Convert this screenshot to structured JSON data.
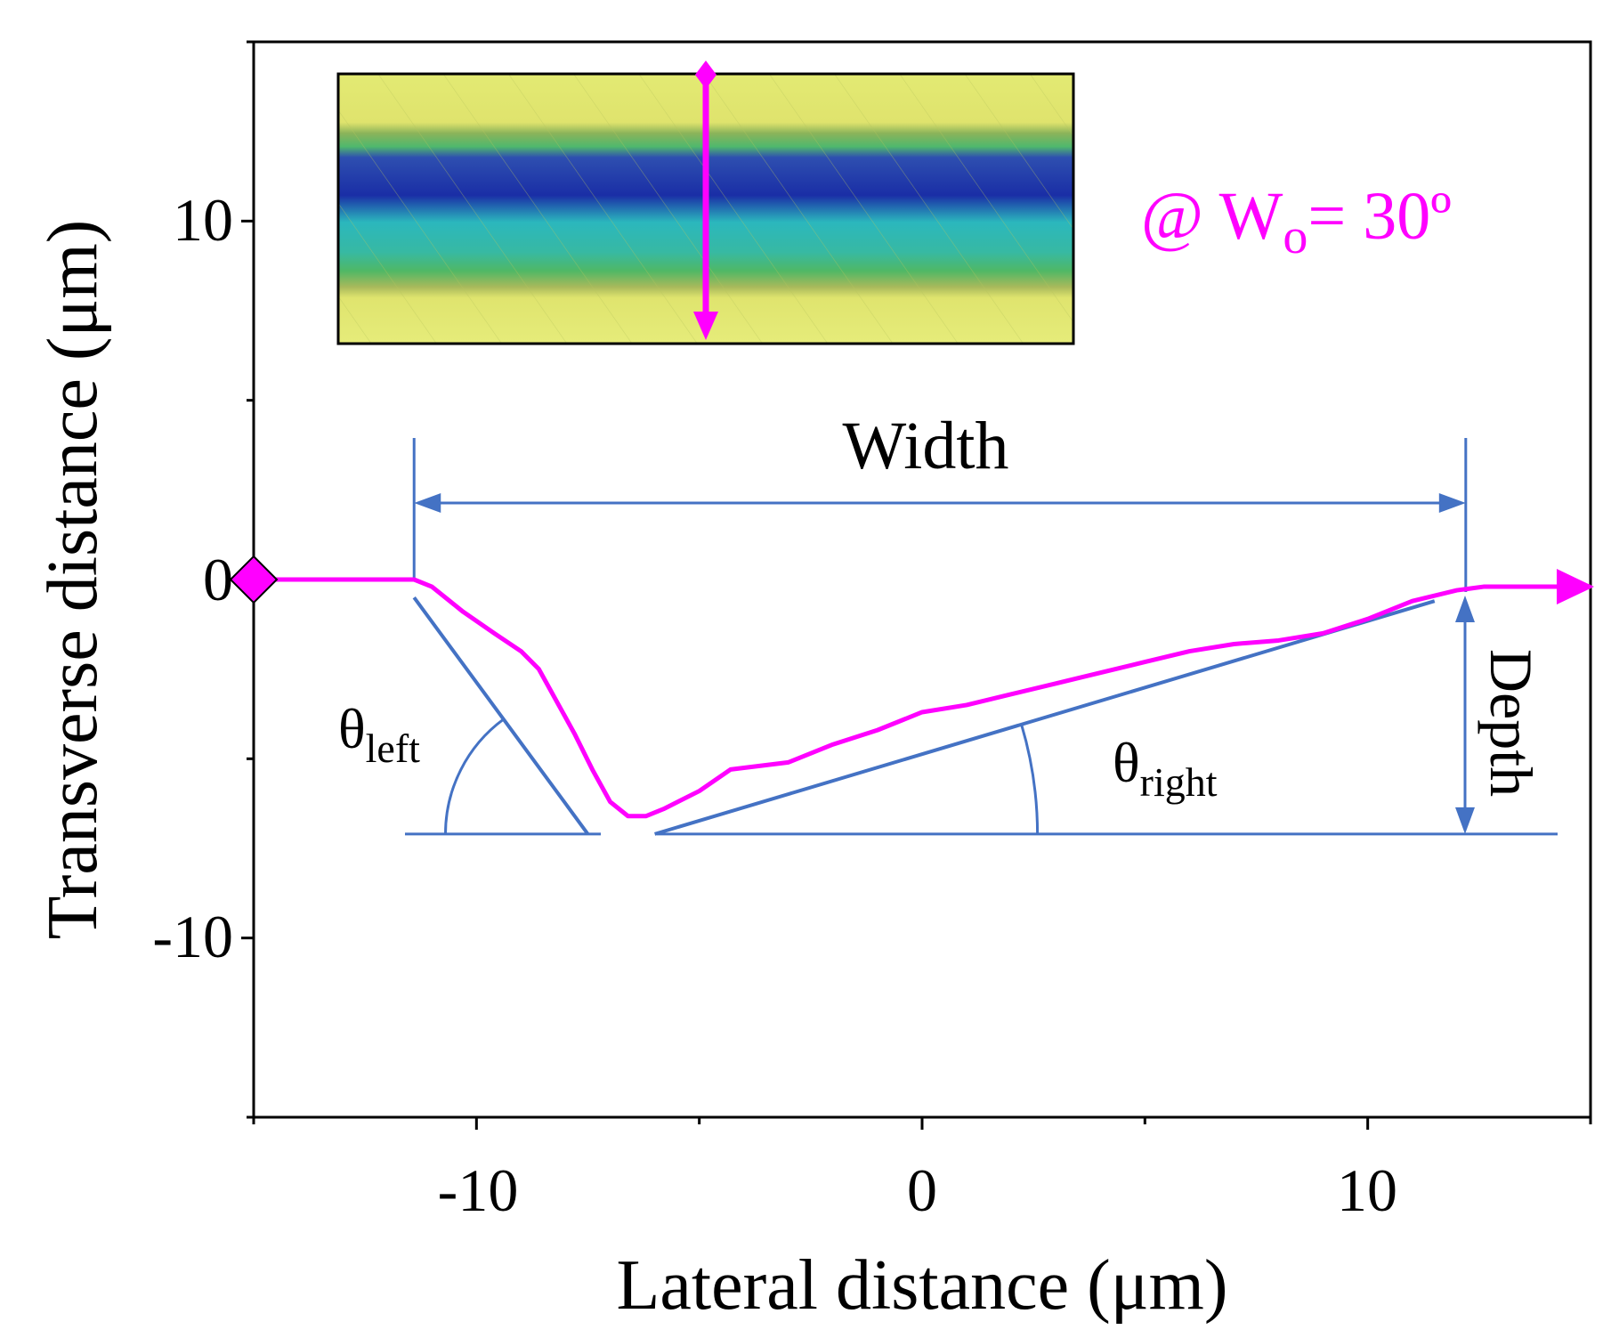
{
  "colors": {
    "profile": "#ff00ff",
    "annotation": "#4472c4",
    "axis": "#000000",
    "annotation_text": "#000000",
    "condition_text": "#ff00ff",
    "inset_yellow": "#e2e86a",
    "inset_green": "#49b96a",
    "inset_blue": "#1b2fa3",
    "inset_cyan": "#29b8bd"
  },
  "labels": {
    "xlabel": "Lateral distance (μm)",
    "ylabel": "Transverse distance (μm)",
    "width": "Width",
    "depth": "Depth",
    "theta_left_symbol": "θ",
    "theta_left_sub": "left",
    "theta_right_symbol": "θ",
    "theta_right_sub": "right",
    "condition_prefix": "@ W",
    "condition_sub": "o",
    "condition_suffix": "= 30º"
  },
  "chart_data": {
    "type": "line",
    "title": "",
    "xlabel": "Lateral distance (μm)",
    "ylabel": "Transverse distance (μm)",
    "xlim": [
      -15,
      15
    ],
    "ylim": [
      -15,
      15
    ],
    "xticks": [
      -10,
      0,
      10
    ],
    "xtick_labels": [
      "-10",
      "0",
      "10"
    ],
    "xminor": [
      -15,
      -5,
      5,
      15
    ],
    "yticks": [
      10,
      0,
      -10
    ],
    "ytick_labels": [
      "10",
      "0",
      "-10"
    ],
    "yminor": [
      15,
      5,
      -5,
      -15
    ],
    "grid": false,
    "series": [
      {
        "name": "profile",
        "x": [
          -15,
          -13,
          -11.4,
          -11,
          -10.3,
          -9.6,
          -9.0,
          -8.6,
          -8.2,
          -7.8,
          -7.4,
          -7.0,
          -6.6,
          -6.2,
          -5.8,
          -5.0,
          -4.3,
          -3.0,
          -2.0,
          -1.0,
          0.0,
          1.0,
          2.0,
          3.0,
          4.0,
          5.0,
          6.0,
          7.0,
          8.0,
          9.0,
          10.0,
          11.0,
          12.0,
          12.6,
          13.5,
          14.5,
          15.0
        ],
        "y": [
          0,
          0,
          0,
          -0.2,
          -0.9,
          -1.5,
          -2.0,
          -2.5,
          -3.4,
          -4.3,
          -5.3,
          -6.2,
          -6.6,
          -6.6,
          -6.4,
          -5.9,
          -5.3,
          -5.1,
          -4.6,
          -4.2,
          -3.7,
          -3.5,
          -3.2,
          -2.9,
          -2.6,
          -2.3,
          -2.0,
          -1.8,
          -1.7,
          -1.5,
          -1.1,
          -0.6,
          -0.3,
          -0.2,
          -0.2,
          -0.2,
          -0.2
        ]
      }
    ],
    "annotations": {
      "width_span": [
        -11.4,
        12.2
      ],
      "depth_span": [
        0,
        -7.1
      ],
      "baseline_y": -7.1,
      "left_slope_line": [
        [
          -11.4,
          -0.5
        ],
        [
          -7.5,
          -7.1
        ]
      ],
      "right_slope_line": [
        [
          -6.0,
          -7.1
        ],
        [
          11.5,
          -0.6
        ]
      ]
    }
  }
}
